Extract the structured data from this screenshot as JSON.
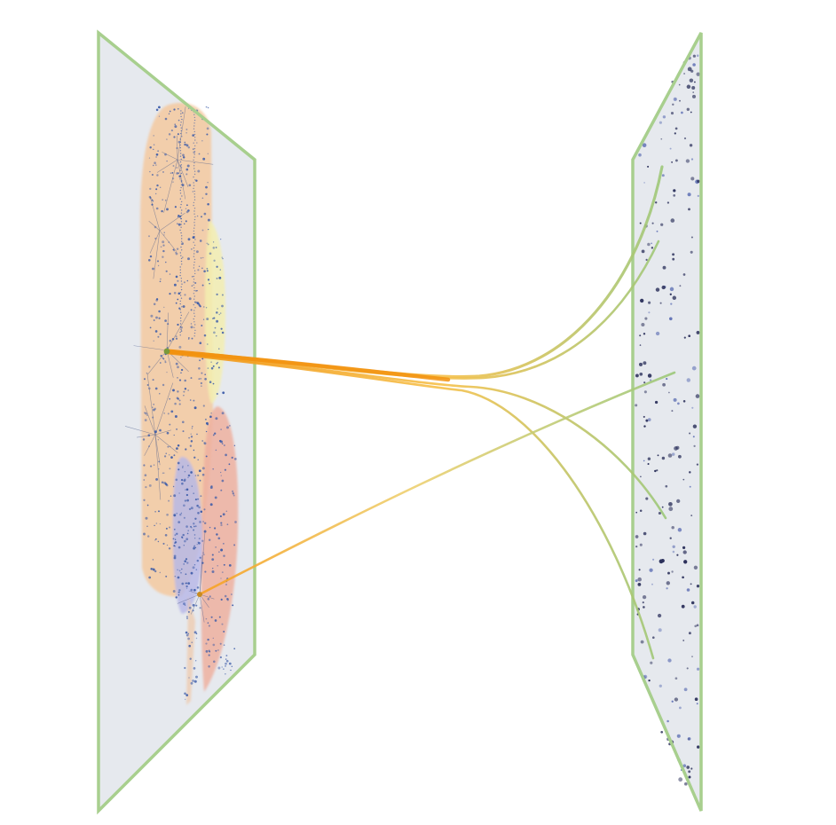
{
  "diagram": {
    "kind": "two-plane-link-projection",
    "title": "",
    "left_plane": {
      "name": "",
      "border_color": "#a8cf8e",
      "fill_color": "#e6e9ee",
      "regions": [
        {
          "id": "orange",
          "color": "#f4c9a0"
        },
        {
          "id": "yellow",
          "color": "#f3eeb0"
        },
        {
          "id": "red",
          "color": "#eeb0a0"
        },
        {
          "id": "blue",
          "color": "#b8b8e8"
        }
      ],
      "node_color": "#3a5aa8"
    },
    "right_plane": {
      "name": "",
      "border_color": "#a8cf8e",
      "fill_color": "#e6e9ee",
      "node_color": "#2a2f5a"
    },
    "bundle_colors": {
      "source": "#f2920f",
      "target": "#9cc87a"
    },
    "bundles": [
      {
        "id": "hub-upper",
        "targets": 4
      },
      {
        "id": "hub-lower",
        "targets": 1
      }
    ]
  }
}
